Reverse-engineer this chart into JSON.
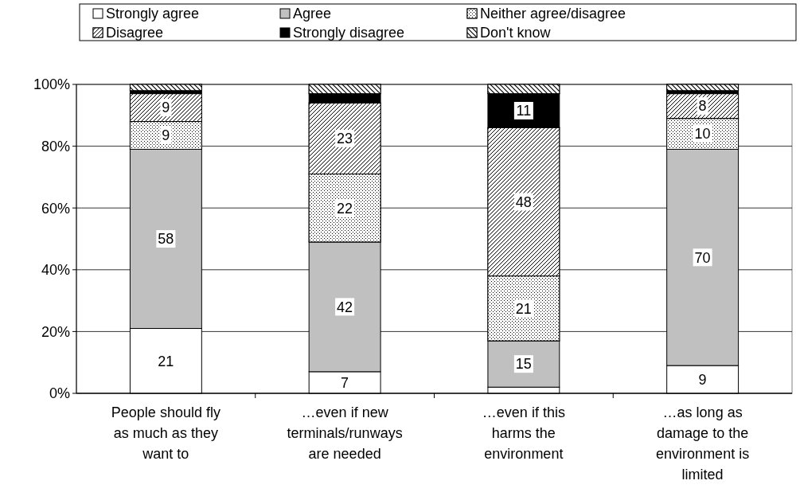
{
  "chart_data": {
    "type": "bar",
    "stacked": true,
    "categories": [
      "People should fly as much as they want to",
      "…even if new terminals/runways are needed",
      "…even if this harms the environment",
      "…as long as damage to the environment is limited"
    ],
    "series": [
      {
        "name": "Strongly agree",
        "color": "#ffffff",
        "values": [
          21,
          7,
          2,
          9
        ],
        "value_labels": [
          "21",
          "7",
          null,
          "9"
        ]
      },
      {
        "name": "Agree",
        "color": "#c0c0c0",
        "values": [
          58,
          42,
          15,
          70
        ],
        "value_labels": [
          "58",
          "42",
          "15",
          "70"
        ]
      },
      {
        "name": "Neither agree/disagree",
        "color": "#ffffff",
        "values": [
          9,
          22,
          21,
          10
        ],
        "value_labels": [
          "9",
          "22",
          "21",
          "10"
        ]
      },
      {
        "name": "Disagree",
        "color": "#ffffff",
        "values": [
          9,
          23,
          48,
          8
        ],
        "value_labels": [
          "9",
          "23",
          "48",
          "8"
        ]
      },
      {
        "name": "Strongly disagree",
        "color": "#000000",
        "values": [
          1,
          3,
          11,
          1
        ],
        "value_labels": [
          null,
          null,
          "11",
          null
        ]
      },
      {
        "name": "Don't know",
        "color": "#ffffff",
        "values": [
          2,
          3,
          3,
          2
        ],
        "value_labels": [
          null,
          null,
          null,
          null
        ]
      }
    ],
    "ylim": [
      0,
      100
    ],
    "yticks": [
      {
        "value": 0,
        "label": "0%"
      },
      {
        "value": 20,
        "label": "20%"
      },
      {
        "value": 40,
        "label": "40%"
      },
      {
        "value": 60,
        "label": "60%"
      },
      {
        "value": 80,
        "label": "80%"
      },
      {
        "value": 100,
        "label": "100%"
      }
    ],
    "grid": "y",
    "legend": "top"
  }
}
